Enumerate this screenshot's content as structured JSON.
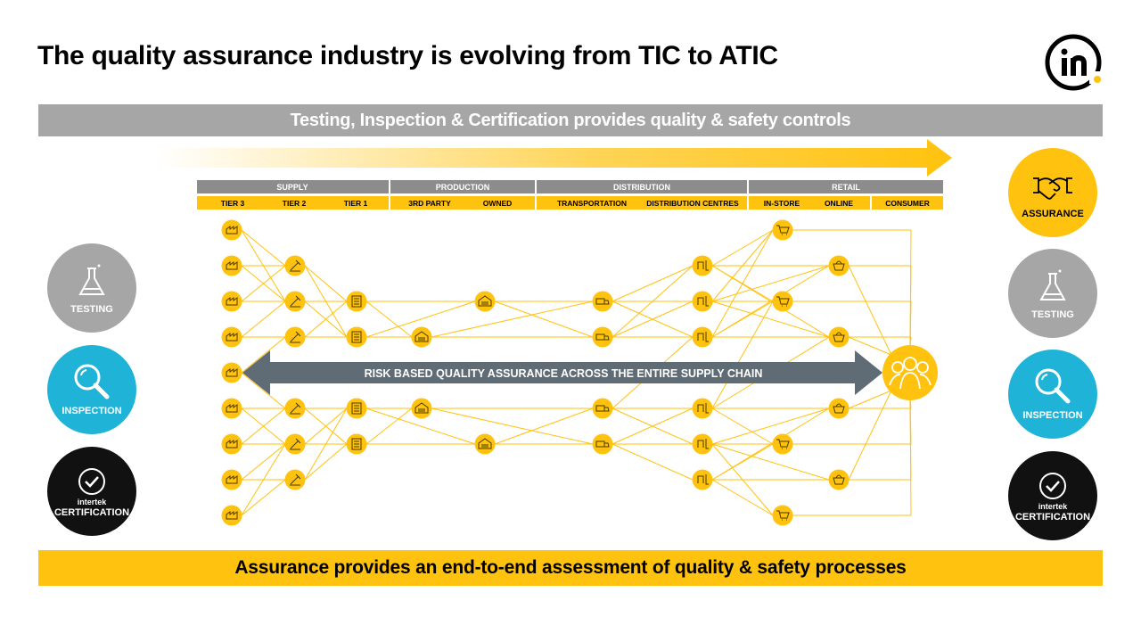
{
  "title": "The quality assurance industry is evolving from TIC to ATIC",
  "top_band": "Testing, Inspection & Certification provides quality & safety controls",
  "bottom_band": "Assurance provides an end-to-end assessment of quality & safety processes",
  "risk_arrow": "RISK BASED QUALITY ASSURANCE ACROSS THE ENTIRE SUPPLY CHAIN",
  "groups": [
    "SUPPLY",
    "PRODUCTION",
    "DISTRIBUTION",
    "RETAIL"
  ],
  "sub_headers": [
    "TIER 3",
    "TIER 2",
    "TIER 1",
    "3RD PARTY",
    "OWNED",
    "TRANSPORTATION",
    "DISTRIBUTION CENTRES",
    "IN-STORE",
    "ONLINE",
    "CONSUMER"
  ],
  "left_circles": {
    "testing": "TESTING",
    "inspection": "INSPECTION",
    "certification": "CERTIFICATION",
    "brand": "intertek"
  },
  "right_circles": {
    "assurance": "ASSURANCE",
    "testing": "TESTING",
    "inspection": "INSPECTION",
    "certification": "CERTIFICATION",
    "brand": "intertek"
  },
  "colors": {
    "yellow": "#ffc20e",
    "gray": "#a6a6a6",
    "blue": "#1fb3d8",
    "black": "#111111",
    "arrow": "#5f6b75"
  }
}
